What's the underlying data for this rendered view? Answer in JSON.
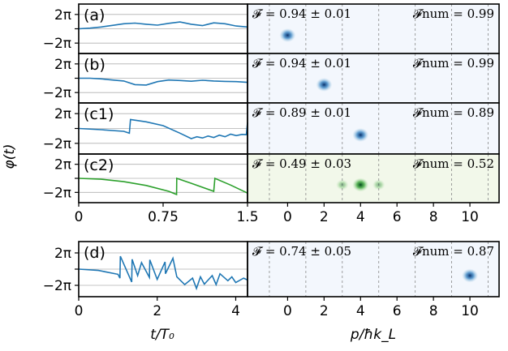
{
  "chart_data": {
    "type": "multi-panel line + momentum-distribution figure",
    "ylabel": "φ(t)",
    "xlabel_left": "t/T₀",
    "xlabel_right": "p/ħk_L",
    "left_y_ticks": [
      "2π",
      "−2π"
    ],
    "left_xticks_top": [
      "0",
      "0.75",
      "1.5"
    ],
    "left_xticks_bottom": [
      "0",
      "2",
      "4"
    ],
    "right_xticks": [
      "0",
      "2",
      "4",
      "6",
      "8",
      "10"
    ],
    "right_xlim": [
      -2.2,
      11.6
    ],
    "colors": {
      "blue": "#1f77b4",
      "green": "#2ca02c",
      "blue_bg": "#f3f7fd",
      "green_bg": "#f2f8ea"
    },
    "panels": [
      {
        "label": "(a)",
        "fidelity": "𝓕 = 0.94 ± 0.01",
        "fidelity_num": "𝓕num = 0.99",
        "color": "blue",
        "peaks": [
          0
        ],
        "peak_strength": [
          1.0
        ],
        "phase_t": [
          0,
          0.1,
          0.2,
          0.3,
          0.4,
          0.5,
          0.6,
          0.7,
          0.8,
          0.9,
          1.0,
          1.1,
          1.2,
          1.3,
          1.4,
          1.5
        ],
        "phase": [
          0,
          0.3,
          0.8,
          1.5,
          2.2,
          2.5,
          2.0,
          1.6,
          2.4,
          3.0,
          2.0,
          1.4,
          2.6,
          2.2,
          1.2,
          0.8
        ]
      },
      {
        "label": "(b)",
        "fidelity": "𝓕 = 0.94 ± 0.01",
        "fidelity_num": "𝓕num = 0.99",
        "color": "blue",
        "peaks": [
          2
        ],
        "peak_strength": [
          1.0
        ],
        "phase_t": [
          0,
          0.1,
          0.2,
          0.3,
          0.4,
          0.5,
          0.6,
          0.7,
          0.8,
          0.9,
          1.0,
          1.1,
          1.2,
          1.3,
          1.4,
          1.5
        ],
        "phase": [
          0,
          0,
          -0.3,
          -0.8,
          -1.2,
          -2.8,
          -3.0,
          -1.5,
          -0.8,
          -1.0,
          -1.3,
          -0.9,
          -1.2,
          -1.4,
          -1.5,
          -1.8
        ]
      },
      {
        "label": "(c1)",
        "fidelity": "𝓕 = 0.89 ± 0.01",
        "fidelity_num": "𝓕num = 0.89",
        "color": "blue",
        "peaks": [
          4
        ],
        "peak_strength": [
          1.0
        ],
        "phase_t": [
          0,
          0.2,
          0.4,
          0.45,
          0.46,
          0.6,
          0.75,
          0.9,
          1.0,
          1.05,
          1.1,
          1.15,
          1.2,
          1.25,
          1.3,
          1.35,
          1.4,
          1.45,
          1.49,
          1.5
        ],
        "phase": [
          0,
          -0.5,
          -1.2,
          -2.0,
          3.8,
          2.8,
          1.2,
          -2.0,
          -4.3,
          -3.5,
          -4.0,
          -3.2,
          -3.8,
          -2.8,
          -3.5,
          -2.4,
          -3.0,
          -2.5,
          -2.6,
          2.5
        ]
      },
      {
        "label": "(c2)",
        "fidelity": "𝓕 = 0.49 ± 0.03",
        "fidelity_num": "𝓕num = 0.52",
        "color": "green",
        "peaks": [
          3,
          4,
          5
        ],
        "peak_strength": [
          0.45,
          1.0,
          0.45
        ],
        "phase_t": [
          0,
          0.2,
          0.4,
          0.6,
          0.8,
          0.87,
          0.871,
          1.0,
          1.2,
          1.21,
          1.35,
          1.5
        ],
        "phase": [
          0,
          -0.4,
          -1.5,
          -3.2,
          -5.8,
          -7.2,
          0,
          -2.2,
          -5.8,
          0,
          -3.0,
          -6.6
        ]
      },
      {
        "label": "(d)",
        "fidelity": "𝓕 = 0.74 ± 0.05",
        "fidelity_num": "𝓕num = 0.87",
        "color": "blue",
        "peaks": [
          10
        ],
        "peak_strength": [
          1.0
        ],
        "phase_t": [
          0,
          0.5,
          1.0,
          1.05,
          1.06,
          1.35,
          1.36,
          1.5,
          1.6,
          1.8,
          1.81,
          2.0,
          2.2,
          2.21,
          2.4,
          2.5,
          2.7,
          2.9,
          3.0,
          3.1,
          3.2,
          3.4,
          3.5,
          3.6,
          3.8,
          3.9,
          4.0,
          4.2,
          4.3
        ],
        "phase": [
          0,
          -0.5,
          -2.0,
          -3.5,
          5.0,
          -5.0,
          3.8,
          -2.5,
          2.5,
          -3.2,
          3.6,
          -4.0,
          2.8,
          -1.8,
          4.2,
          -3.0,
          -6.0,
          -3.5,
          -7.5,
          -3.0,
          -5.8,
          -2.5,
          -6.0,
          -1.8,
          -4.5,
          -3.0,
          -5.2,
          -3.5,
          -4.2
        ]
      }
    ]
  }
}
